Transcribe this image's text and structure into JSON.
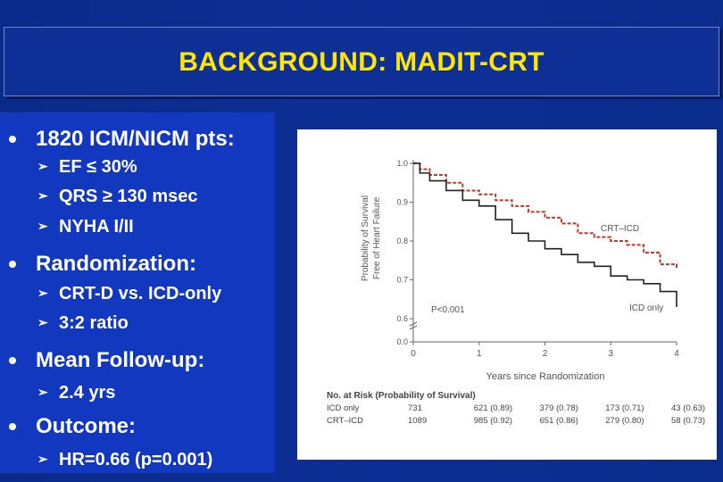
{
  "title": "BACKGROUND: MADIT-CRT",
  "bullets": [
    {
      "label": "1820 ICM/NICM pts:",
      "subs": [
        "EF ≤ 30%",
        "QRS ≥ 130 msec",
        "NYHA I/II"
      ]
    },
    {
      "label": "Randomization:",
      "subs": [
        "CRT-D vs. ICD-only",
        "3:2 ratio"
      ]
    },
    {
      "label": "Mean Follow-up:",
      "subs": [
        "2.4 yrs"
      ]
    },
    {
      "label": "Outcome:",
      "subs": [
        "HR=0.66 (p=0.001)"
      ]
    }
  ],
  "colors": {
    "title": "#ffe600",
    "panel": "#1238c0",
    "background": "#0b2a86",
    "crt": "#c0392b",
    "icd": "#222222"
  },
  "chart_data": {
    "type": "line",
    "ylabel": "Probability of Survival Free of Heart Failure",
    "xlabel": "Years since Randomization",
    "x_ticks": [
      "0",
      "1",
      "2",
      "3",
      "4"
    ],
    "y_ticks": [
      "0.0",
      "0.6",
      "0.7",
      "0.8",
      "0.9",
      "1.0"
    ],
    "ylim": [
      0.0,
      1.0
    ],
    "xlim": [
      0,
      4
    ],
    "annotation": "P<0.001",
    "series": [
      {
        "name": "CRT–ICD",
        "style": "dashed",
        "color": "#c0392b",
        "x": [
          0,
          0.1,
          0.25,
          0.5,
          0.75,
          1.0,
          1.25,
          1.5,
          1.75,
          2.0,
          2.25,
          2.5,
          2.75,
          3.0,
          3.25,
          3.5,
          3.75,
          4.0
        ],
        "y": [
          1.0,
          0.985,
          0.97,
          0.95,
          0.93,
          0.92,
          0.905,
          0.89,
          0.875,
          0.86,
          0.845,
          0.82,
          0.81,
          0.8,
          0.79,
          0.77,
          0.74,
          0.73
        ]
      },
      {
        "name": "ICD only",
        "style": "solid",
        "color": "#222222",
        "x": [
          0,
          0.1,
          0.25,
          0.5,
          0.75,
          1.0,
          1.25,
          1.5,
          1.75,
          2.0,
          2.25,
          2.5,
          2.75,
          3.0,
          3.25,
          3.5,
          3.75,
          4.0
        ],
        "y": [
          1.0,
          0.975,
          0.955,
          0.93,
          0.905,
          0.89,
          0.855,
          0.82,
          0.8,
          0.78,
          0.765,
          0.745,
          0.735,
          0.71,
          0.7,
          0.69,
          0.67,
          0.63
        ]
      }
    ],
    "risk_table": {
      "header": "No. at Risk (Probability of Survival)",
      "rows": [
        {
          "label": "ICD only",
          "cells": [
            "731",
            "621 (0.89)",
            "379 (0.78)",
            "173 (0.71)",
            "43 (0.63)"
          ]
        },
        {
          "label": "CRT–ICD",
          "cells": [
            "1089",
            "985 (0.92)",
            "651 (0.86)",
            "279 (0.80)",
            "58 (0.73)"
          ]
        }
      ]
    }
  }
}
